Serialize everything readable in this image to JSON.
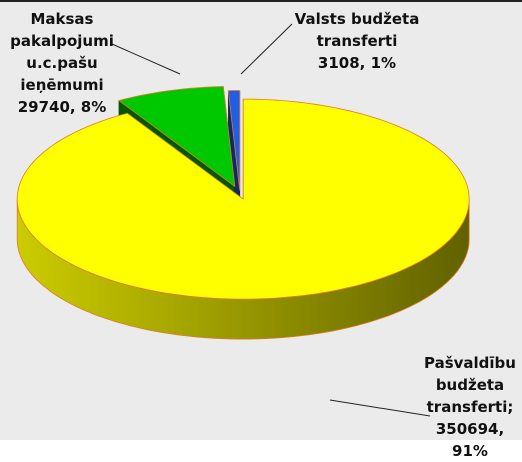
{
  "chart_data": {
    "type": "pie",
    "categories": [
      "Pašvaldību budžeta transferti;",
      "Maksas pakalpojumi u.c.pašu ieņēmumi",
      "Valsts budžeta transferti"
    ],
    "values": [
      350694,
      29740,
      3108
    ],
    "value_labels": [
      "350694, 91%",
      "29740, 8%",
      "3108, 1%"
    ],
    "colors": [
      "#ffff00",
      "#00c800",
      "#1f5fe8"
    ]
  }
}
